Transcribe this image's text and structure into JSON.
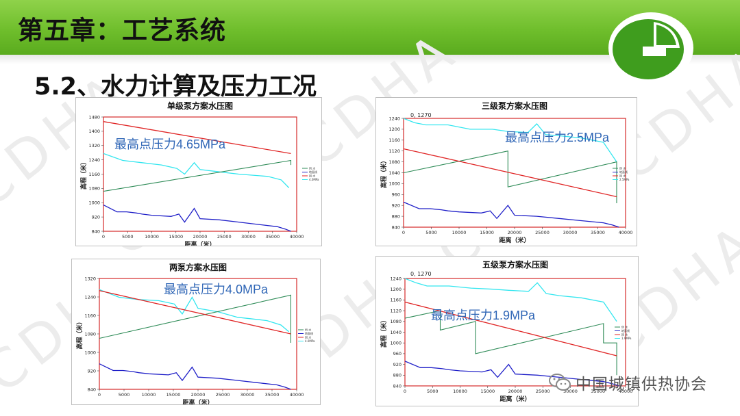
{
  "header": {
    "title": "第五章：工艺系统"
  },
  "section_title": "5.2、水力计算及压力工况",
  "watermark": "CDHA",
  "footer_text": "中国城镇供热协会",
  "colors": {
    "header_green": "#6fbe2c",
    "annotation_blue": "#2f66b6"
  },
  "charts": [
    {
      "title": "单级泵方案水压图",
      "annotation": "最高点压力4.65MPa",
      "corner_label": "",
      "ylabel": "高程（米）",
      "xlabel": "距离（米）",
      "y_ticks": [
        "840",
        "920",
        "1000",
        "1080",
        "1160",
        "1240",
        "1320",
        "1400",
        "1480"
      ],
      "x_ticks": [
        "0",
        "5000",
        "10000",
        "15000",
        "20000",
        "25000",
        "30000",
        "35000",
        "40000"
      ],
      "legend": [
        "供 水",
        "地面线",
        "回 水",
        "4.0MPa"
      ]
    },
    {
      "title": "三级泵方案水压图",
      "annotation": "最高点压力2.5MPa",
      "corner_label": "0, 1270",
      "ylabel": "高程（米）",
      "xlabel": "距离（米）",
      "y_ticks": [
        "840",
        "880",
        "920",
        "960",
        "1000",
        "1040",
        "1080",
        "1120",
        "1160",
        "1200",
        "1240"
      ],
      "x_ticks": [
        "0",
        "5000",
        "10000",
        "15000",
        "20000",
        "25000",
        "30000",
        "35000",
        "40000"
      ],
      "legend": [
        "供 水",
        "地面线",
        "回 水",
        "2.5MPa"
      ]
    },
    {
      "title": "两泵方案水压图",
      "annotation": "最高点压力4.0MPa",
      "corner_label": "",
      "ylabel": "高程（米）",
      "xlabel": "距离（米）",
      "y_ticks": [
        "840",
        "920",
        "1000",
        "1080",
        "1160",
        "1240",
        "1320"
      ],
      "x_ticks": [
        "0",
        "5000",
        "10000",
        "15000",
        "20000",
        "25000",
        "30000",
        "35000",
        "40000"
      ],
      "legend": [
        "供 水",
        "地面线",
        "回 水",
        "4.0MPa"
      ]
    },
    {
      "title": "五级泵方案水压图",
      "annotation": "最高点压力1.9MPa",
      "corner_label": "0, 1270",
      "ylabel": "高程（米）",
      "xlabel": "距离（米）",
      "y_ticks": [
        "840",
        "880",
        "920",
        "960",
        "1000",
        "1040",
        "1080",
        "1120",
        "1160",
        "1200",
        "1240"
      ],
      "x_ticks": [
        "0",
        "5000",
        "10000",
        "15000",
        "20000",
        "25000",
        "30000",
        "35000",
        "40000"
      ],
      "legend": [
        "供 水",
        "地面线",
        "回 水",
        "1.9MPa"
      ]
    }
  ]
}
